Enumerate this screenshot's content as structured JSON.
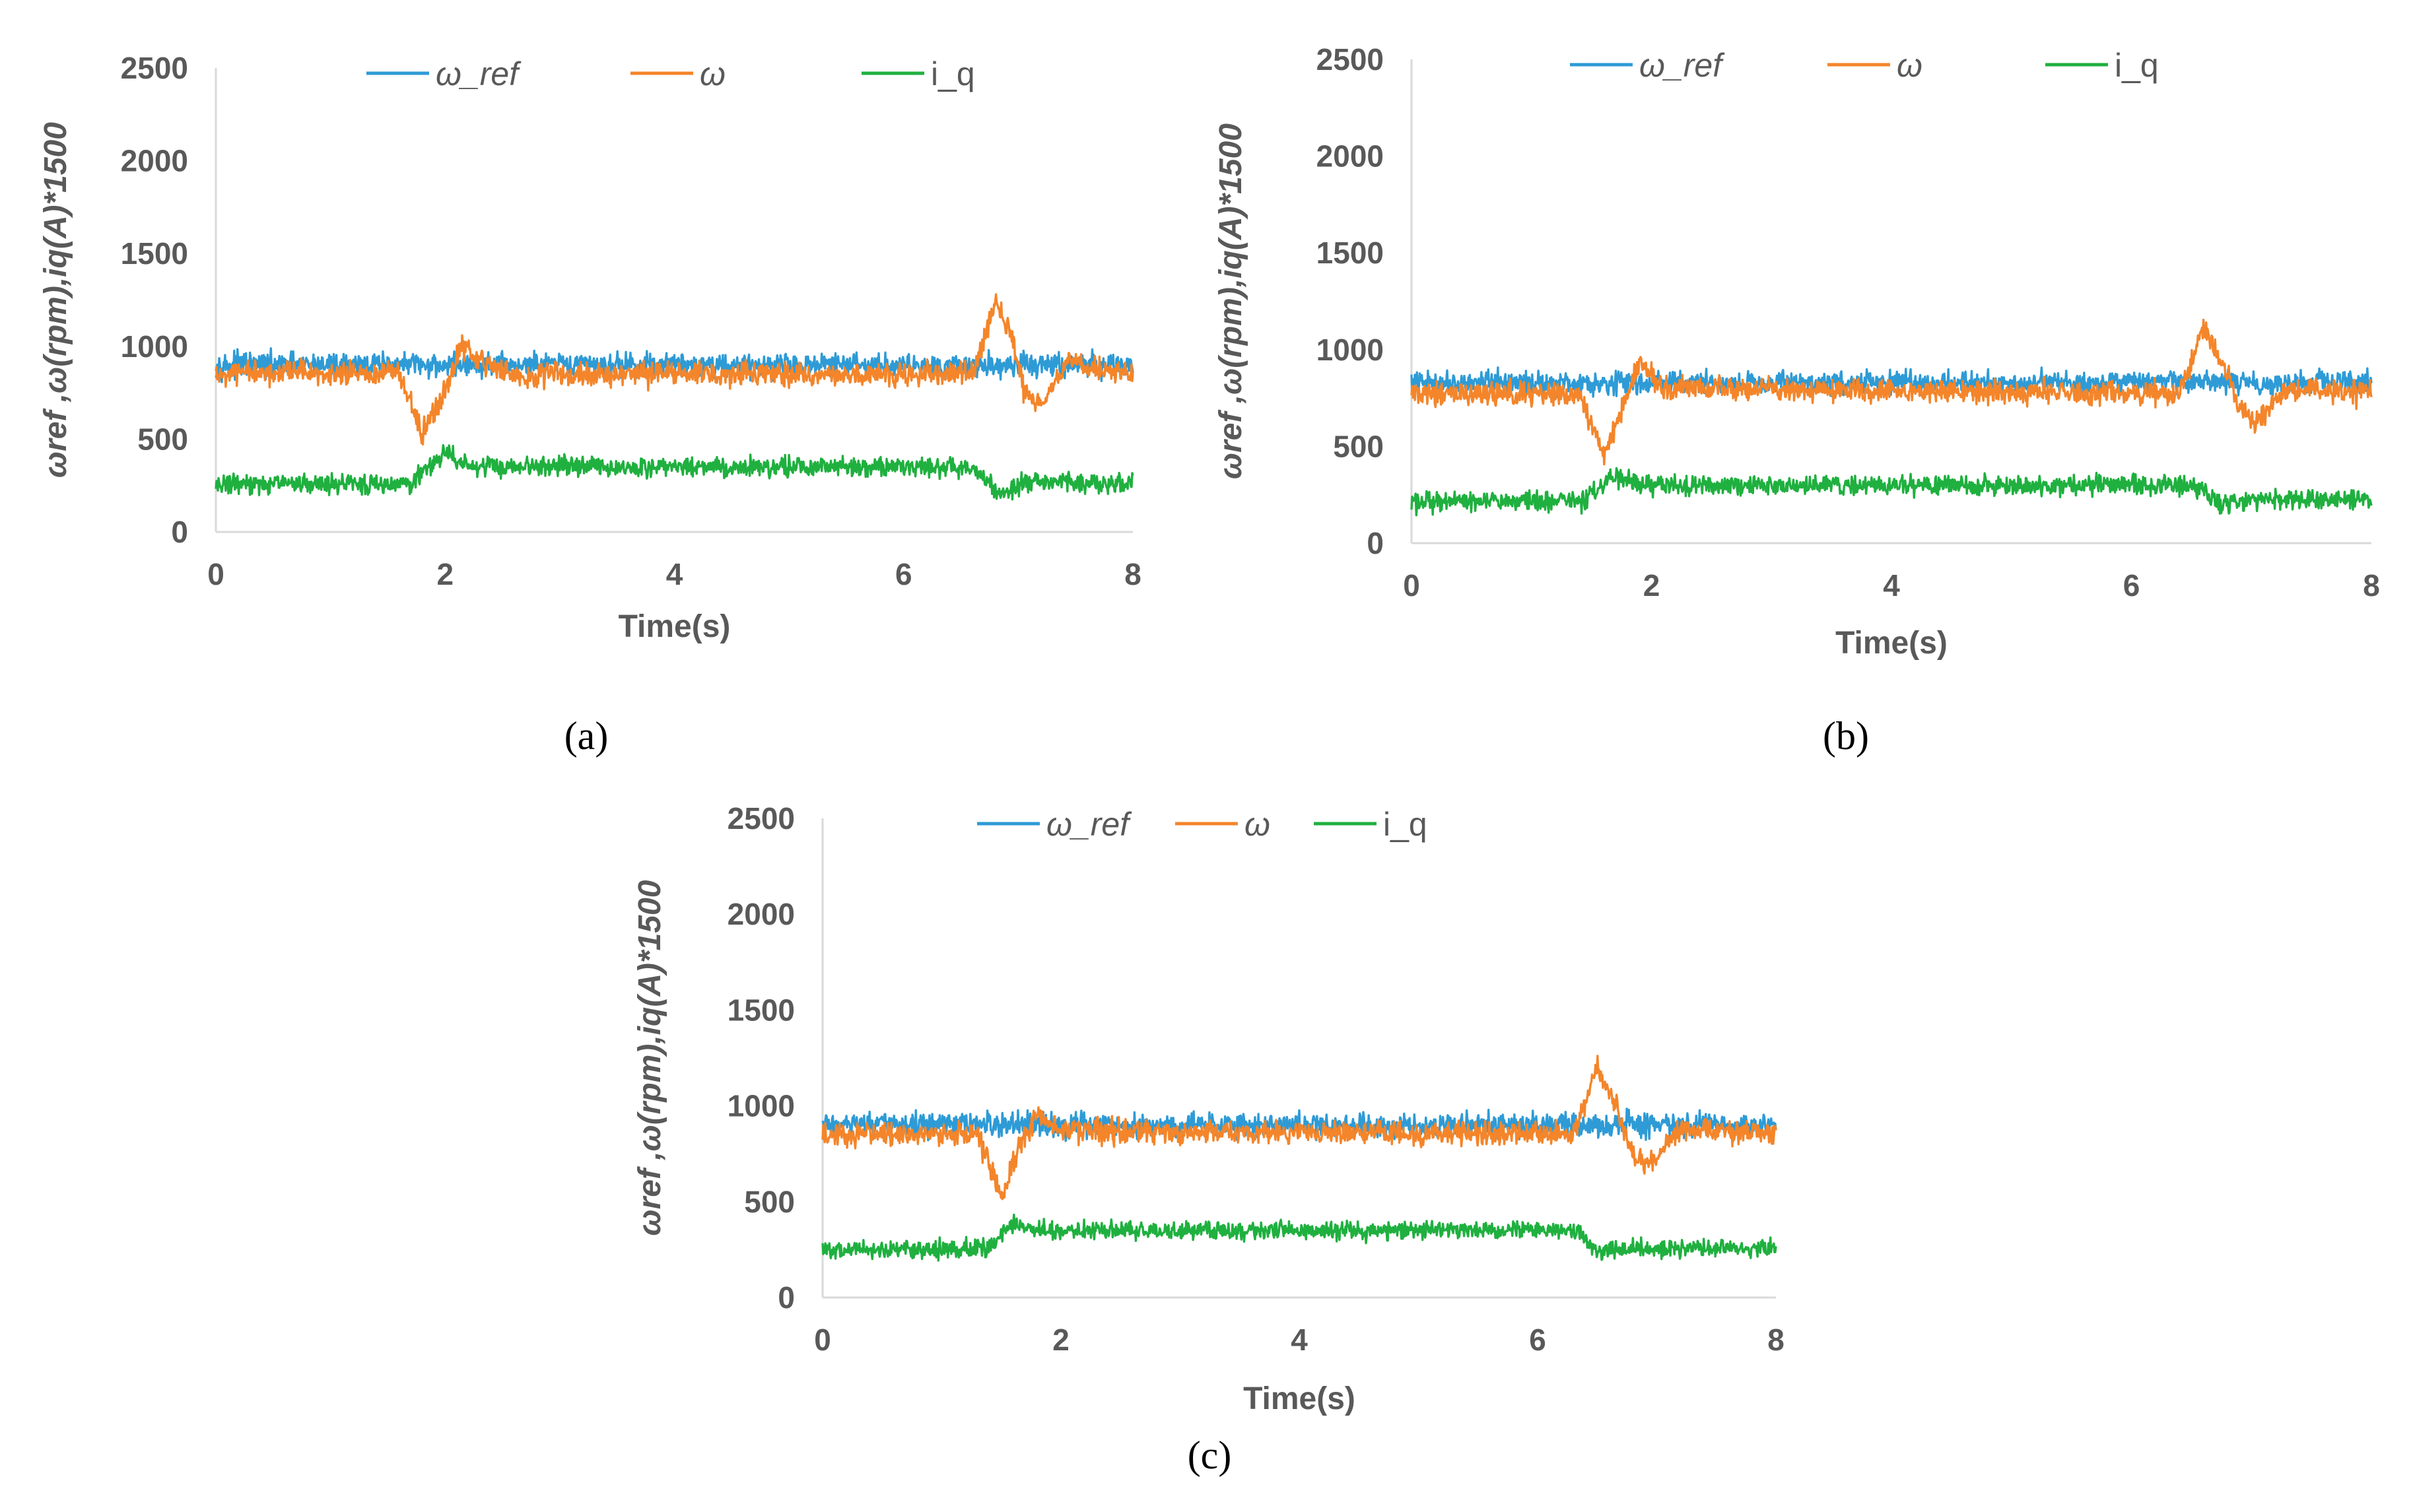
{
  "colors": {
    "omega_ref": "#2e9bd6",
    "omega": "#f4852a",
    "i_q": "#1fb03f",
    "axis_text": "#595959",
    "axis_line": "#d9d9d9"
  },
  "chart_data": [
    {
      "id": "a",
      "type": "line",
      "caption": "(a)",
      "xlabel": "Time(s)",
      "ylabel": "ωref ,ω(rpm),iq(A)*1500",
      "xlim": [
        0,
        8
      ],
      "ylim": [
        0,
        2500
      ],
      "xticks": [
        "0",
        "2",
        "4",
        "6",
        "8"
      ],
      "yticks": [
        "0",
        "500",
        "1000",
        "1500",
        "2000",
        "2500"
      ],
      "legend": [
        "ω_ref",
        "ω",
        "i_q"
      ],
      "series": [
        {
          "name": "ω_ref",
          "key": "omega_ref",
          "noise": 55,
          "points": [
            [
              0,
              900
            ],
            [
              8,
              900
            ]
          ]
        },
        {
          "name": "ω",
          "key": "omega",
          "noise": 55,
          "points": [
            [
              0,
              850
            ],
            [
              1.6,
              850
            ],
            [
              1.8,
              520
            ],
            [
              2.0,
              760
            ],
            [
              2.15,
              1010
            ],
            [
              2.35,
              900
            ],
            [
              2.6,
              850
            ],
            [
              6.6,
              850
            ],
            [
              6.8,
              1230
            ],
            [
              6.95,
              1050
            ],
            [
              7.05,
              750
            ],
            [
              7.2,
              680
            ],
            [
              7.45,
              950
            ],
            [
              7.6,
              880
            ],
            [
              8,
              850
            ]
          ]
        },
        {
          "name": "i_q",
          "key": "i_q",
          "noise": 45,
          "points": [
            [
              0,
              260
            ],
            [
              1.7,
              260
            ],
            [
              2.0,
              430
            ],
            [
              2.2,
              350
            ],
            [
              6.6,
              350
            ],
            [
              6.85,
              200
            ],
            [
              7.1,
              270
            ],
            [
              8,
              260
            ]
          ]
        }
      ]
    },
    {
      "id": "b",
      "type": "line",
      "caption": "(b)",
      "xlabel": "Time(s)",
      "ylabel": "ωref ,ω(rpm),iq(A)*1500",
      "xlim": [
        0,
        8
      ],
      "ylim": [
        0,
        2500
      ],
      "xticks": [
        "0",
        "2",
        "4",
        "6",
        "8"
      ],
      "yticks": [
        "0",
        "500",
        "1000",
        "1500",
        "2000",
        "2500"
      ],
      "legend": [
        "ω_ref",
        "ω",
        "i_q"
      ],
      "series": [
        {
          "name": "ω_ref",
          "key": "omega_ref",
          "noise": 50,
          "points": [
            [
              0,
              830
            ],
            [
              8,
              830
            ]
          ]
        },
        {
          "name": "ω",
          "key": "omega",
          "noise": 50,
          "points": [
            [
              0,
              770
            ],
            [
              1.4,
              770
            ],
            [
              1.6,
              450
            ],
            [
              1.75,
              700
            ],
            [
              1.9,
              930
            ],
            [
              2.1,
              800
            ],
            [
              6.4,
              770
            ],
            [
              6.6,
              1100
            ],
            [
              6.75,
              950
            ],
            [
              6.9,
              700
            ],
            [
              7.05,
              620
            ],
            [
              7.3,
              800
            ],
            [
              8,
              770
            ]
          ]
        },
        {
          "name": "i_q",
          "key": "i_q",
          "noise": 45,
          "points": [
            [
              0,
              220
            ],
            [
              1.45,
              220
            ],
            [
              1.7,
              350
            ],
            [
              1.9,
              300
            ],
            [
              6.5,
              300
            ],
            [
              6.75,
              200
            ],
            [
              7.0,
              230
            ],
            [
              8,
              220
            ]
          ]
        }
      ]
    },
    {
      "id": "c",
      "type": "line",
      "caption": "(c)",
      "xlabel": "Time(s)",
      "ylabel": "ωref ,ω(rpm),iq(A)*1500",
      "xlim": [
        0,
        8
      ],
      "ylim": [
        0,
        2500
      ],
      "xticks": [
        "0",
        "2",
        "4",
        "6",
        "8"
      ],
      "yticks": [
        "0",
        "500",
        "1000",
        "1500",
        "2000",
        "2500"
      ],
      "legend": [
        "ω_ref",
        "ω",
        "i_q"
      ],
      "series": [
        {
          "name": "ω_ref",
          "key": "omega_ref",
          "noise": 55,
          "points": [
            [
              0,
              900
            ],
            [
              8,
              900
            ]
          ]
        },
        {
          "name": "ω",
          "key": "omega",
          "noise": 50,
          "points": [
            [
              0,
              850
            ],
            [
              1.3,
              850
            ],
            [
              1.5,
              520
            ],
            [
              1.65,
              780
            ],
            [
              1.8,
              960
            ],
            [
              2.0,
              870
            ],
            [
              6.3,
              850
            ],
            [
              6.5,
              1200
            ],
            [
              6.65,
              1020
            ],
            [
              6.8,
              730
            ],
            [
              6.95,
              700
            ],
            [
              7.2,
              880
            ],
            [
              8,
              850
            ]
          ]
        },
        {
          "name": "i_q",
          "key": "i_q",
          "noise": 40,
          "points": [
            [
              0,
              250
            ],
            [
              1.4,
              250
            ],
            [
              1.6,
              390
            ],
            [
              1.8,
              350
            ],
            [
              6.3,
              350
            ],
            [
              6.5,
              240
            ],
            [
              6.8,
              250
            ],
            [
              8,
              260
            ]
          ]
        }
      ]
    }
  ]
}
